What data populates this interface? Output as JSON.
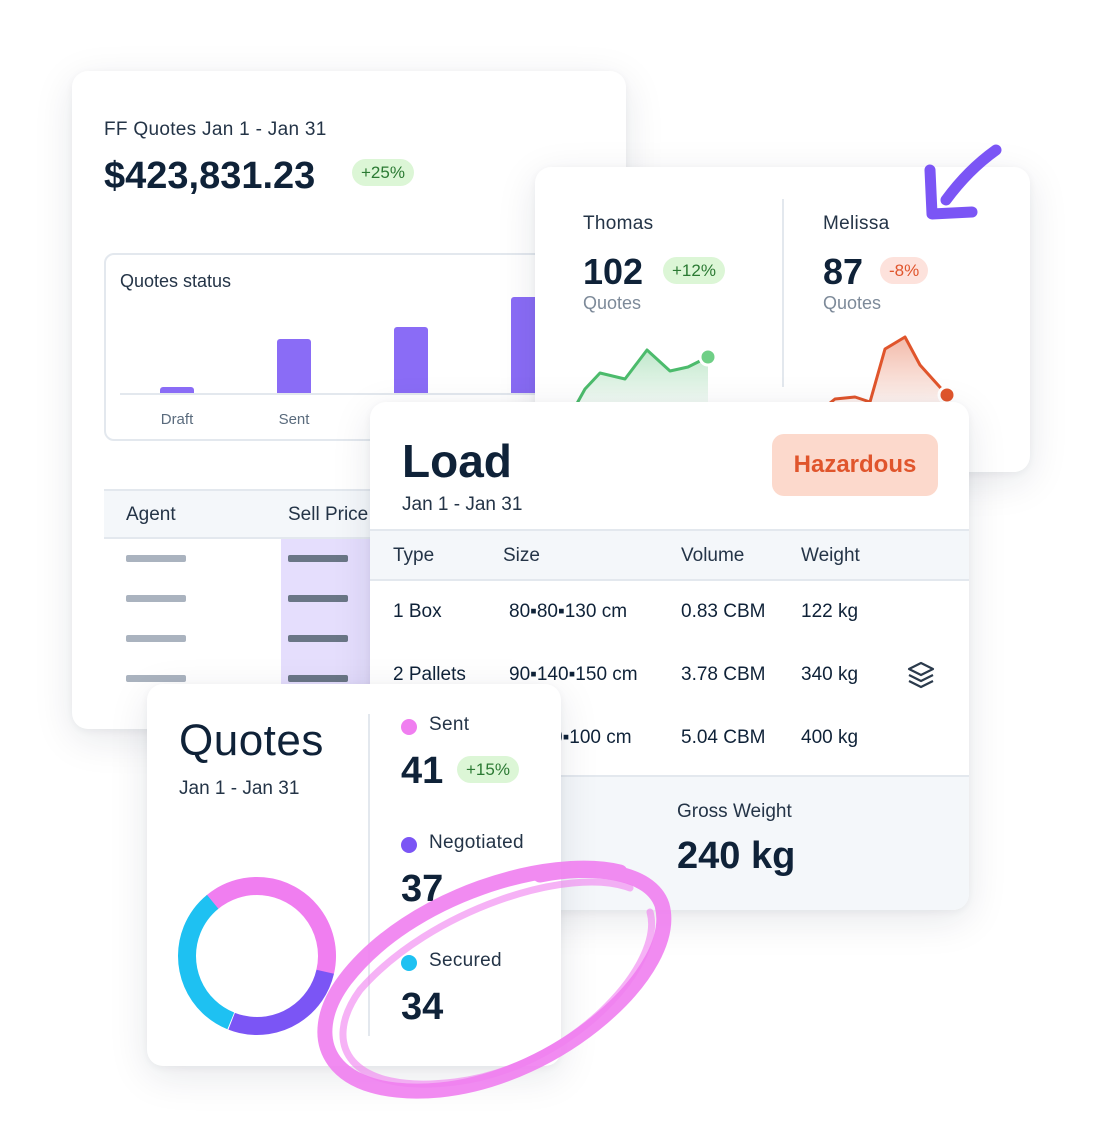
{
  "ff_quotes": {
    "title": "FF Quotes Jan 1 - Jan 31",
    "amount": "$423,831.23",
    "change": "+25%",
    "status_chart_label": "Quotes status",
    "table_headers": [
      "Agent",
      "Sell Price"
    ]
  },
  "chart_data": {
    "type": "bar",
    "title": "Quotes status",
    "categories": [
      "Draft",
      "Sent",
      "",
      ""
    ],
    "values": [
      1,
      9,
      11,
      16
    ],
    "ylim": [
      0,
      20
    ],
    "grid": false,
    "colors": {
      "bar": "#8a6cf6"
    }
  },
  "agents": [
    {
      "name": "Thomas",
      "count": "102",
      "change": "+12%",
      "unit": "Quotes",
      "trend": "up",
      "color": "#4cbb6c"
    },
    {
      "name": "Melissa",
      "count": "87",
      "change": "-8%",
      "unit": "Quotes",
      "trend": "down",
      "color": "#e0552c"
    }
  ],
  "load": {
    "title": "Load",
    "dates": "Jan 1 - Jan 31",
    "tag": "Hazardous",
    "headers": [
      "Type",
      "Size",
      "Volume",
      "Weight"
    ],
    "rows": [
      {
        "type": "1 Box",
        "size": "80▪80▪130 cm",
        "volume": "0.83 CBM",
        "weight": "122 kg"
      },
      {
        "type": "2 Pallets",
        "size": "90▪140▪150 cm",
        "volume": "3.78 CBM",
        "weight": "340 kg",
        "icon": "layers-icon"
      },
      {
        "type": "",
        "size": "0▪100 cm",
        "volume": "5.04 CBM",
        "weight": "400 kg"
      }
    ],
    "gross_weight_label": "Gross Weight",
    "gross_weight_value": "240 kg"
  },
  "quotes": {
    "title": "Quotes",
    "dates": "Jan 1 - Jan 31",
    "legend": [
      {
        "label": "Sent",
        "value": "41",
        "change": "+15%",
        "color": "#f07ef0"
      },
      {
        "label": "Negotiated",
        "value": "37",
        "color": "#7b55f5"
      },
      {
        "label": "Secured",
        "value": "34",
        "color": "#1ec1f2"
      }
    ]
  },
  "colors": {
    "accent_purple": "#8a6cf6",
    "positive": "#4cbb6c",
    "negative": "#e0552c",
    "hazard_bg": "#fcd9cc",
    "scribble": "#f07ef0",
    "arrow": "#7b55f5"
  }
}
